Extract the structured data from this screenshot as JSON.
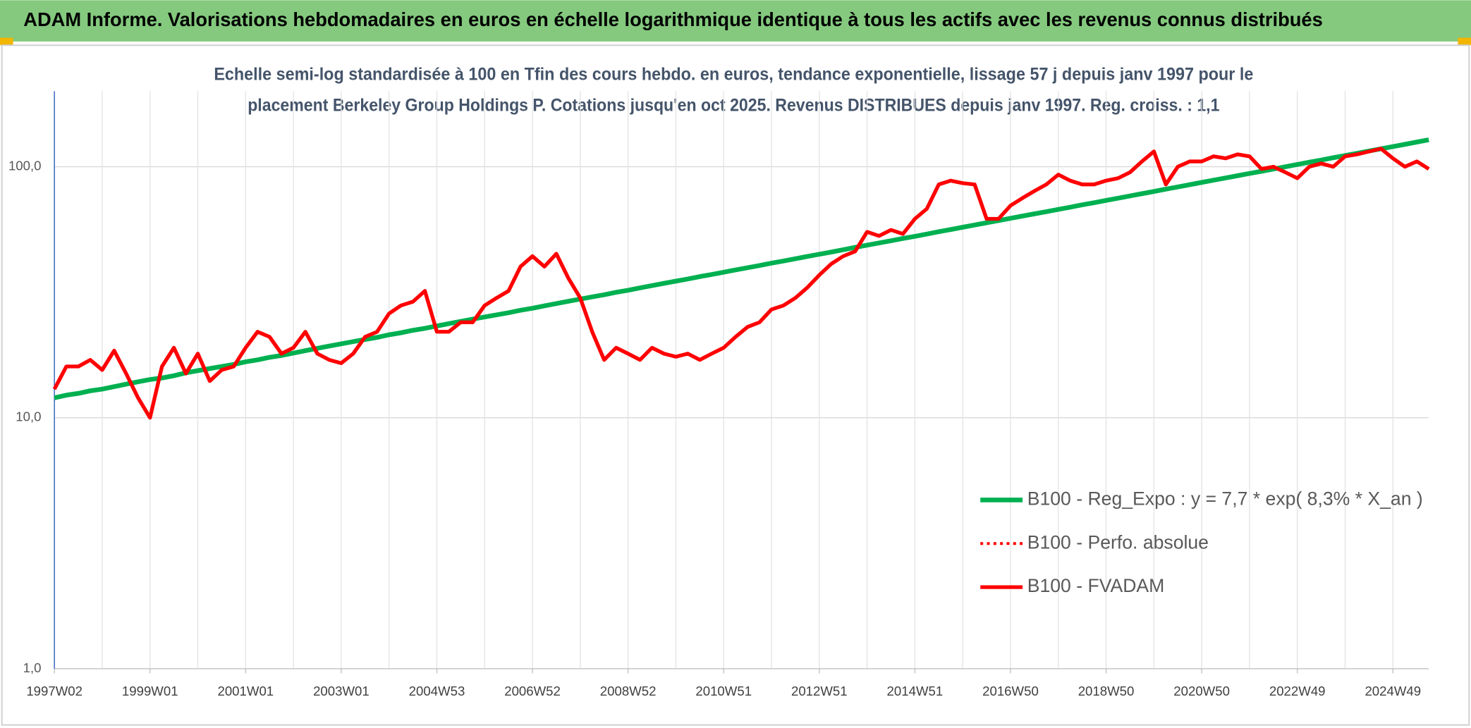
{
  "chart_data": {
    "type": "line",
    "title": "ADAM Informe. Valorisations hebdomadaires en euros en échelle logarithmique identique à tous les actifs avec les revenus connus distribués",
    "subtitle": [
      "Echelle semi-log standardisée à 100 en Tfin des cours hebdo. en euros, tendance exponentielle, lissage 57 j depuis janv 1997 pour le",
      "placement Berkeley Group Holdings P. Cotations jusqu'en oct 2025. Revenus DISTRIBUES depuis janv 1997. Reg. croiss. : 1,1"
    ],
    "categories": [
      "1997W02",
      null,
      null,
      null,
      null,
      null,
      null,
      null,
      "1999W01",
      null,
      null,
      null,
      null,
      null,
      null,
      null,
      "2001W01",
      null,
      null,
      null,
      null,
      null,
      null,
      null,
      "2003W01",
      null,
      null,
      null,
      null,
      null,
      null,
      null,
      "2004W53",
      null,
      null,
      null,
      null,
      null,
      null,
      null,
      "2006W52",
      null,
      null,
      null,
      null,
      null,
      null,
      null,
      "2008W52",
      null,
      null,
      null,
      null,
      null,
      null,
      null,
      "2010W51",
      null,
      null,
      null,
      null,
      null,
      null,
      null,
      "2012W51",
      null,
      null,
      null,
      null,
      null,
      null,
      null,
      "2014W51",
      null,
      null,
      null,
      null,
      null,
      null,
      null,
      "2016W50",
      null,
      null,
      null,
      null,
      null,
      null,
      null,
      "2018W50",
      null,
      null,
      null,
      null,
      null,
      null,
      null,
      "2020W50",
      null,
      null,
      null,
      null,
      null,
      null,
      null,
      "2022W49",
      null,
      null,
      null,
      null,
      null,
      null,
      null,
      "2024W49",
      null,
      null,
      null
    ],
    "series": [
      {
        "name": "B100 - Reg_Expo : y = 7,7 * exp( 8,3% *  X_an )",
        "color": "#00b050",
        "style": "solid",
        "width": 5,
        "values": [
          12.0,
          12.3,
          12.5,
          12.8,
          13.0,
          13.3,
          13.6,
          13.9,
          14.2,
          14.4,
          14.7,
          15.1,
          15.4,
          15.7,
          16.0,
          16.3,
          16.7,
          17.0,
          17.4,
          17.7,
          18.1,
          18.5,
          18.9,
          19.3,
          19.7,
          20.1,
          20.5,
          20.9,
          21.4,
          21.8,
          22.3,
          22.7,
          23.2,
          23.7,
          24.2,
          24.7,
          25.2,
          25.7,
          26.2,
          26.8,
          27.3,
          27.9,
          28.5,
          29.1,
          29.7,
          30.3,
          30.9,
          31.6,
          32.2,
          32.9,
          33.6,
          34.3,
          35.0,
          35.7,
          36.5,
          37.2,
          38.0,
          38.8,
          39.6,
          40.4,
          41.3,
          42.1,
          43.0,
          43.9,
          44.8,
          45.7,
          46.7,
          47.7,
          48.7,
          49.7,
          50.7,
          51.8,
          52.8,
          53.9,
          55.1,
          56.2,
          57.4,
          58.6,
          59.8,
          61.0,
          62.3,
          63.6,
          64.9,
          66.2,
          67.6,
          69.0,
          70.5,
          71.9,
          73.4,
          74.9,
          76.5,
          78.1,
          79.7,
          81.4,
          83.1,
          84.8,
          86.6,
          88.4,
          90.2,
          92.1,
          94.0,
          95.9,
          97.9,
          100.0,
          102.1,
          104.2,
          106.3,
          108.6,
          110.8,
          113.1,
          115.5,
          117.9,
          120.3,
          122.8,
          125.4,
          128.0
        ]
      },
      {
        "name": "B100 - Perfo. absolue",
        "color": "#ff0000",
        "style": "dotted",
        "width": 3,
        "values": [
          13,
          16,
          16,
          17,
          15.5,
          18.5,
          15,
          12,
          10,
          16,
          19,
          15,
          18,
          14,
          15.5,
          16,
          19,
          22,
          21,
          18,
          19,
          22,
          18,
          17,
          16.5,
          18,
          21,
          22,
          26,
          28,
          29,
          32,
          22,
          22,
          24,
          24,
          28,
          30,
          32,
          40,
          44,
          40,
          45,
          36,
          30,
          22,
          17,
          19,
          18,
          17,
          19,
          18,
          17.5,
          18,
          17,
          18,
          19,
          21,
          23,
          24,
          27,
          28,
          30,
          33,
          37,
          41,
          44,
          46,
          55,
          53,
          56,
          54,
          62,
          68,
          85,
          88,
          86,
          85,
          62,
          62,
          70,
          75,
          80,
          85,
          93,
          88,
          85,
          85,
          88,
          90,
          95,
          105,
          115,
          85,
          100,
          105,
          105,
          110,
          108,
          112,
          110,
          98,
          100,
          95,
          90,
          100,
          103,
          100,
          110,
          112,
          115,
          118,
          108,
          100,
          105,
          98
        ]
      },
      {
        "name": "B100 - FVADAM",
        "color": "#ff0000",
        "style": "solid",
        "width": 4,
        "values": [
          13,
          16,
          16,
          17,
          15.5,
          18.5,
          15,
          12,
          10,
          16,
          19,
          15,
          18,
          14,
          15.5,
          16,
          19,
          22,
          21,
          18,
          19,
          22,
          18,
          17,
          16.5,
          18,
          21,
          22,
          26,
          28,
          29,
          32,
          22,
          22,
          24,
          24,
          28,
          30,
          32,
          40,
          44,
          40,
          45,
          36,
          30,
          22,
          17,
          19,
          18,
          17,
          19,
          18,
          17.5,
          18,
          17,
          18,
          19,
          21,
          23,
          24,
          27,
          28,
          30,
          33,
          37,
          41,
          44,
          46,
          55,
          53,
          56,
          54,
          62,
          68,
          85,
          88,
          86,
          85,
          62,
          62,
          70,
          75,
          80,
          85,
          93,
          88,
          85,
          85,
          88,
          90,
          95,
          105,
          115,
          85,
          100,
          105,
          105,
          110,
          108,
          112,
          110,
          98,
          100,
          95,
          90,
          100,
          103,
          100,
          110,
          112,
          115,
          118,
          108,
          100,
          105,
          98
        ]
      }
    ],
    "ylim": [
      1,
      200
    ],
    "log_scale": true,
    "yticks": [
      {
        "value": 1,
        "label": "1,0"
      },
      {
        "value": 10,
        "label": "10,0"
      },
      {
        "value": 100,
        "label": "100,0"
      }
    ],
    "grid": true,
    "legend": "lower right"
  }
}
